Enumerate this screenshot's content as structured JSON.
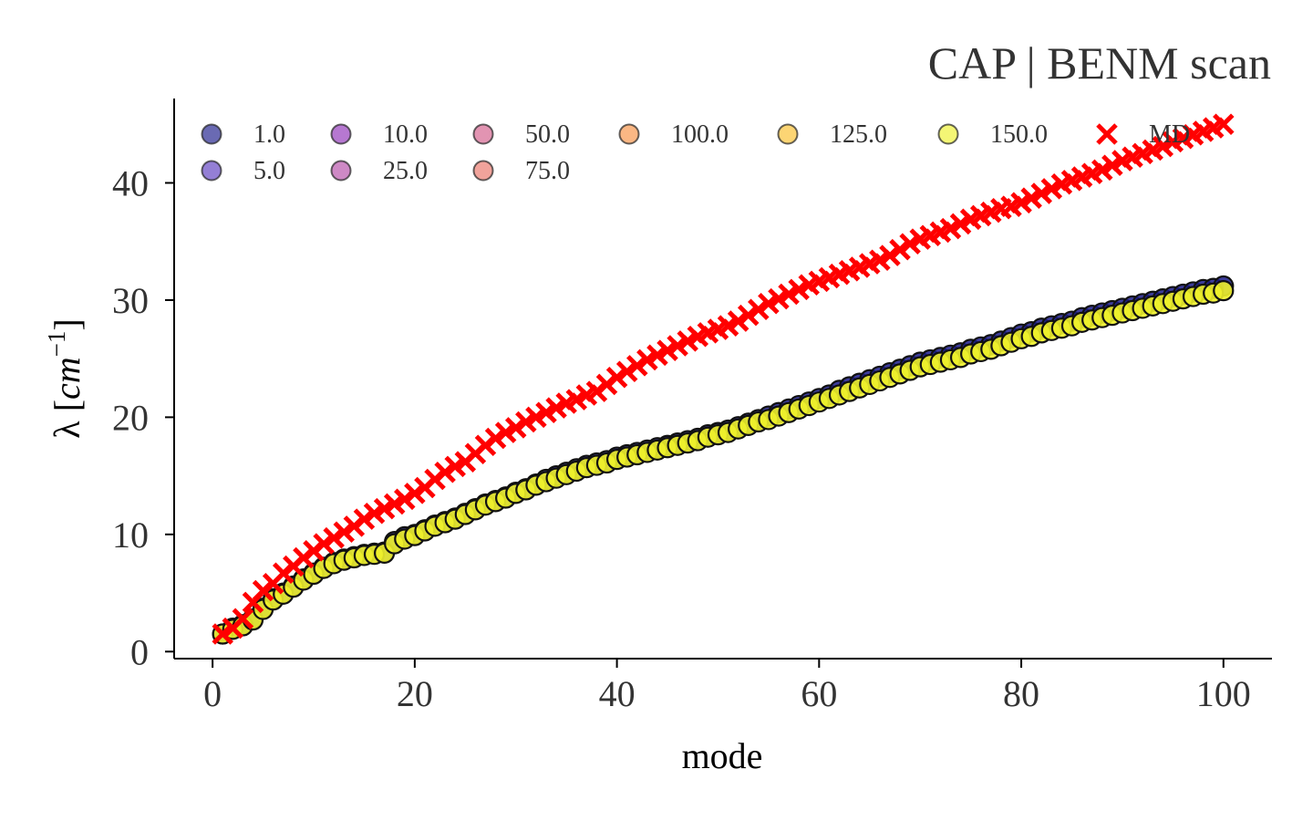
{
  "chart_data": {
    "type": "scatter",
    "title": "CAP | BENM scan",
    "xlabel": "mode",
    "ylabel": "λ [cm⁻¹]",
    "ylabel_main": "λ [",
    "ylabel_unit": "cm",
    "ylabel_exp": "−1",
    "ylabel_close": "]",
    "xlim": [
      -3.8,
      104.8
    ],
    "ylim": [
      -0.6,
      47.2
    ],
    "xticks": [
      0,
      20,
      40,
      60,
      80,
      100
    ],
    "yticks": [
      0,
      10,
      20,
      30,
      40
    ],
    "grid": false,
    "legend_position": "top-left inside, 7 columns",
    "x_range": [
      1,
      100
    ],
    "series": [
      {
        "name": "1.0",
        "color": "#1a1a8a",
        "marker": "circle",
        "values": [
          1.5,
          2.0,
          2.3,
          2.8,
          3.7,
          4.5,
          5.0,
          5.6,
          6.2,
          6.7,
          7.2,
          7.6,
          7.9,
          8.1,
          8.3,
          8.4,
          8.5,
          9.4,
          9.8,
          10.0,
          10.4,
          10.8,
          11.1,
          11.4,
          11.8,
          12.2,
          12.6,
          12.9,
          13.2,
          13.6,
          13.9,
          14.3,
          14.7,
          15.0,
          15.3,
          15.6,
          15.9,
          16.1,
          16.3,
          16.6,
          16.8,
          17.0,
          17.2,
          17.4,
          17.6,
          17.8,
          18.0,
          18.2,
          18.5,
          18.7,
          18.9,
          19.2,
          19.5,
          19.8,
          20.1,
          20.4,
          20.7,
          21.0,
          21.3,
          21.6,
          21.9,
          22.3,
          22.6,
          22.9,
          23.2,
          23.5,
          23.8,
          24.1,
          24.4,
          24.7,
          24.9,
          25.1,
          25.3,
          25.5,
          25.8,
          26.0,
          26.2,
          26.5,
          26.8,
          27.1,
          27.3,
          27.6,
          27.8,
          28.0,
          28.2,
          28.5,
          28.7,
          28.9,
          29.1,
          29.3,
          29.5,
          29.7,
          29.9,
          30.1,
          30.3,
          30.5,
          30.7,
          30.9,
          31.0,
          31.2
        ]
      },
      {
        "name": "5.0",
        "color": "#5b3bbf",
        "marker": "circle"
      },
      {
        "name": "10.0",
        "color": "#8f2fb8",
        "marker": "circle"
      },
      {
        "name": "25.0",
        "color": "#b44aa6",
        "marker": "circle"
      },
      {
        "name": "50.0",
        "color": "#d25a88",
        "marker": "circle"
      },
      {
        "name": "75.0",
        "color": "#ea7165",
        "marker": "circle"
      },
      {
        "name": "100.0",
        "color": "#f89142",
        "marker": "circle"
      },
      {
        "name": "125.0",
        "color": "#fbbf2a",
        "marker": "circle"
      },
      {
        "name": "150.0",
        "color": "#eef12b",
        "marker": "circle",
        "values": [
          1.5,
          1.9,
          2.2,
          2.7,
          3.6,
          4.4,
          4.9,
          5.5,
          6.1,
          6.6,
          7.1,
          7.5,
          7.8,
          8.0,
          8.2,
          8.3,
          8.4,
          9.2,
          9.6,
          9.9,
          10.3,
          10.7,
          11.0,
          11.3,
          11.7,
          12.1,
          12.5,
          12.8,
          13.1,
          13.5,
          13.8,
          14.2,
          14.5,
          14.8,
          15.1,
          15.4,
          15.7,
          15.9,
          16.1,
          16.4,
          16.6,
          16.8,
          17.0,
          17.2,
          17.4,
          17.6,
          17.8,
          18.0,
          18.3,
          18.5,
          18.7,
          19.0,
          19.3,
          19.6,
          19.8,
          20.1,
          20.4,
          20.7,
          21.0,
          21.3,
          21.6,
          21.9,
          22.2,
          22.5,
          22.8,
          23.1,
          23.4,
          23.7,
          24.0,
          24.3,
          24.5,
          24.7,
          24.9,
          25.1,
          25.4,
          25.6,
          25.8,
          26.1,
          26.4,
          26.7,
          26.9,
          27.2,
          27.4,
          27.6,
          27.8,
          28.1,
          28.3,
          28.5,
          28.7,
          28.9,
          29.1,
          29.3,
          29.5,
          29.7,
          29.9,
          30.1,
          30.3,
          30.5,
          30.6,
          30.8
        ]
      },
      {
        "name": "MD",
        "color": "#ff0000",
        "marker": "x",
        "values": [
          1.5,
          2.0,
          2.8,
          4.2,
          5.2,
          5.8,
          6.7,
          7.3,
          8.0,
          8.6,
          9.2,
          9.7,
          10.2,
          10.7,
          11.3,
          11.8,
          12.2,
          12.6,
          13.0,
          13.5,
          14.0,
          14.7,
          15.3,
          15.8,
          16.2,
          16.9,
          17.6,
          18.2,
          18.7,
          19.1,
          19.6,
          20.0,
          20.4,
          20.8,
          21.2,
          21.5,
          21.9,
          22.2,
          22.8,
          23.4,
          23.9,
          24.4,
          24.9,
          25.3,
          25.7,
          26.1,
          26.5,
          26.9,
          27.2,
          27.5,
          27.8,
          28.2,
          28.7,
          29.2,
          29.7,
          30.1,
          30.5,
          30.9,
          31.3,
          31.6,
          31.9,
          32.2,
          32.5,
          32.8,
          33.1,
          33.4,
          33.8,
          34.3,
          34.8,
          35.2,
          35.5,
          35.8,
          36.1,
          36.5,
          36.9,
          37.2,
          37.5,
          37.8,
          38.0,
          38.3,
          38.7,
          39.1,
          39.5,
          39.9,
          40.2,
          40.5,
          40.8,
          41.1,
          41.5,
          41.9,
          42.2,
          42.5,
          42.8,
          43.1,
          43.5,
          43.8,
          44.1,
          44.4,
          44.7,
          45.0
        ]
      }
    ]
  }
}
